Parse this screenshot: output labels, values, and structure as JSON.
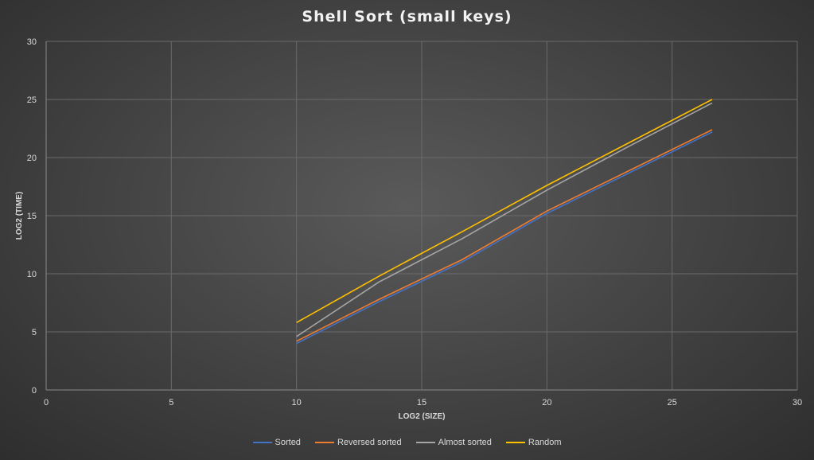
{
  "chart_data": {
    "type": "line",
    "title": "Shell Sort (small keys)",
    "xlabel": "LOG2 (SIZE)",
    "ylabel": "LOG2 (TIME)",
    "xlim": [
      0,
      30
    ],
    "ylim": [
      0,
      30
    ],
    "x_ticks": [
      0,
      5,
      10,
      15,
      20,
      25,
      30
    ],
    "y_ticks": [
      0,
      5,
      10,
      15,
      20,
      25,
      30
    ],
    "grid": true,
    "legend_position": "bottom",
    "series": [
      {
        "name": "Sorted",
        "color": "#4472c4",
        "points": [
          [
            10,
            4.0
          ],
          [
            13.3,
            7.6
          ],
          [
            16.6,
            11.0
          ],
          [
            20,
            15.2
          ],
          [
            23.3,
            18.7
          ],
          [
            26.6,
            22.2
          ]
        ]
      },
      {
        "name": "Reversed sorted",
        "color": "#ed7d31",
        "points": [
          [
            10,
            4.2
          ],
          [
            13.3,
            7.8
          ],
          [
            16.6,
            11.2
          ],
          [
            20,
            15.4
          ],
          [
            23.3,
            18.9
          ],
          [
            26.6,
            22.4
          ]
        ]
      },
      {
        "name": "Almost sorted",
        "color": "#a5a5a5",
        "points": [
          [
            10,
            4.6
          ],
          [
            13.3,
            9.3
          ],
          [
            16.6,
            13.0
          ],
          [
            20,
            17.2
          ],
          [
            23.3,
            21.0
          ],
          [
            26.6,
            24.7
          ]
        ]
      },
      {
        "name": "Random",
        "color": "#ffc000",
        "points": [
          [
            10,
            5.8
          ],
          [
            13.3,
            9.8
          ],
          [
            16.6,
            13.6
          ],
          [
            20,
            17.6
          ],
          [
            23.3,
            21.3
          ],
          [
            26.6,
            25.0
          ]
        ]
      }
    ]
  }
}
